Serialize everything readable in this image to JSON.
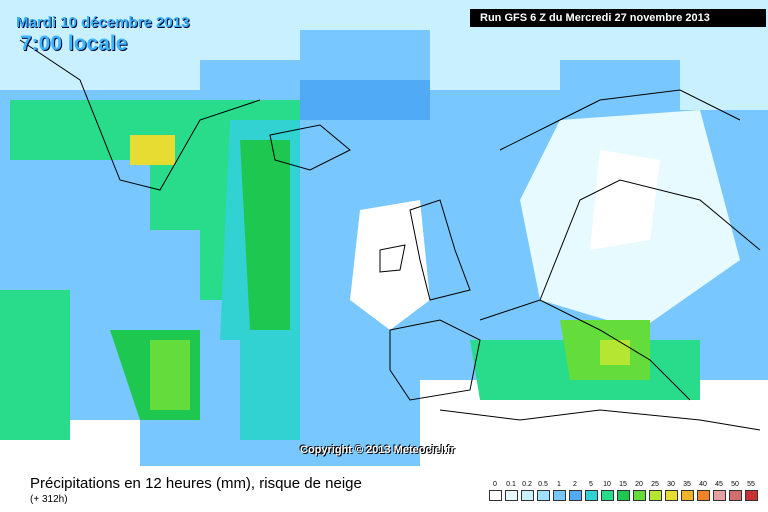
{
  "header": {
    "date": "Mardi 10 décembre 2013",
    "hour": "7:00 locale",
    "run": "Run GFS 6 Z du Mercredi 27 novembre 2013"
  },
  "copyright": "Copyright © 2013 Meteociel.fr",
  "footer": {
    "title": "Précipitations en 12 heures (mm), risque de neige",
    "subtitle": "(+ 312h)"
  },
  "legend": [
    {
      "label": "0",
      "color": "#ffffff"
    },
    {
      "label": "0.1",
      "color": "#e6faff"
    },
    {
      "label": "0.2",
      "color": "#c8f0ff"
    },
    {
      "label": "0.5",
      "color": "#a0e1ff"
    },
    {
      "label": "1",
      "color": "#78c8ff"
    },
    {
      "label": "2",
      "color": "#50aaf5"
    },
    {
      "label": "5",
      "color": "#32d2d2"
    },
    {
      "label": "10",
      "color": "#28dc8c"
    },
    {
      "label": "15",
      "color": "#1ec850"
    },
    {
      "label": "20",
      "color": "#64dc3c"
    },
    {
      "label": "25",
      "color": "#b4e632"
    },
    {
      "label": "30",
      "color": "#e6dc32"
    },
    {
      "label": "35",
      "color": "#f0b428"
    },
    {
      "label": "40",
      "color": "#f08228"
    },
    {
      "label": "45",
      "color": "#e6a0a0"
    },
    {
      "label": "50",
      "color": "#d26e6e"
    },
    {
      "label": "55",
      "color": "#c83232"
    }
  ]
}
